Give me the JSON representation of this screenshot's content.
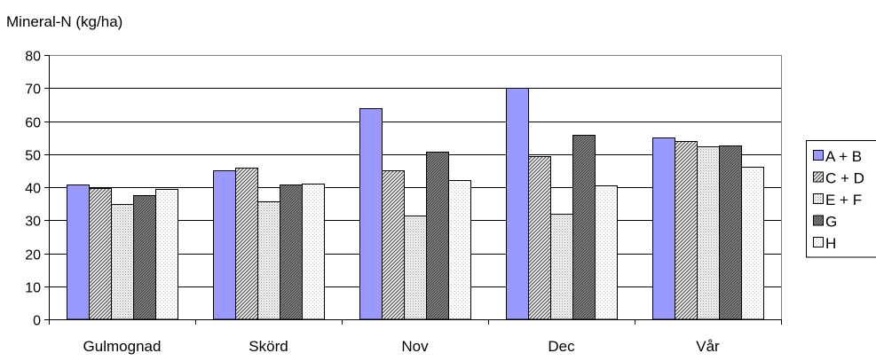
{
  "chart_data": {
    "type": "bar",
    "title": "",
    "xlabel": "",
    "ylabel": "Mineral-N (kg/ha)",
    "ylim": [
      0,
      80
    ],
    "yticks": [
      0,
      10,
      20,
      30,
      40,
      50,
      60,
      70,
      80
    ],
    "grid": true,
    "legend_position": "right",
    "categories": [
      "Gulmognad",
      "Skörd",
      "Nov",
      "Dec",
      "Vår"
    ],
    "series": [
      {
        "name": "A + B",
        "fill": "blue-lavender",
        "values": [
          40.7,
          45.2,
          63.8,
          70.2,
          55.0
        ]
      },
      {
        "name": "C + D",
        "fill": "diagonal-hatch",
        "values": [
          39.8,
          46.0,
          45.2,
          49.3,
          53.9
        ]
      },
      {
        "name": "E + F",
        "fill": "fine-dots",
        "values": [
          35.0,
          35.6,
          31.4,
          32.0,
          52.3
        ]
      },
      {
        "name": "G",
        "fill": "dense-hatch",
        "values": [
          37.5,
          40.9,
          50.8,
          55.8,
          52.6
        ]
      },
      {
        "name": "H",
        "fill": "light-dots",
        "values": [
          39.4,
          41.1,
          42.1,
          40.5,
          46.3
        ]
      }
    ]
  },
  "colors": {
    "bar_a_b": "#9999ff",
    "outline": "#000000",
    "grid": "#000000"
  }
}
